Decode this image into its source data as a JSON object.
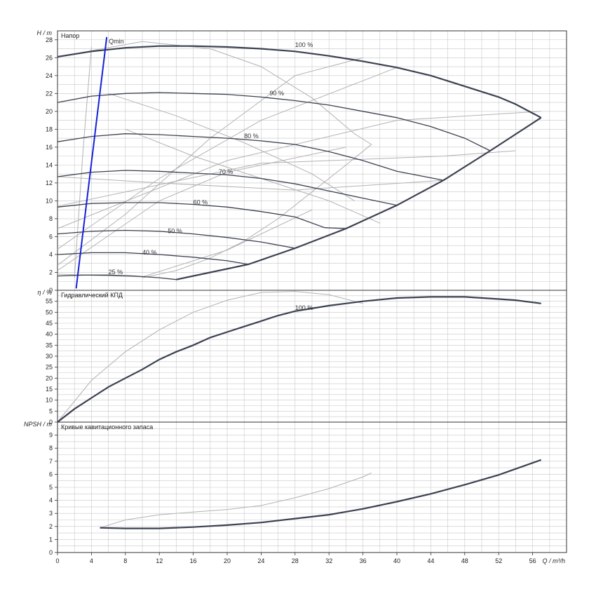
{
  "chart_data": [
    {
      "type": "line",
      "title": "Напор",
      "ylabel": "H / m",
      "xlim": [
        0,
        60
      ],
      "ylim": [
        0,
        29
      ],
      "yticks": [
        0,
        2,
        4,
        6,
        8,
        10,
        12,
        14,
        16,
        18,
        20,
        22,
        24,
        26,
        28
      ],
      "grid": true,
      "speed_curves": [
        {
          "name": "100 %",
          "label_at": [
            28,
            27.2
          ],
          "points": [
            [
              0,
              26.1
            ],
            [
              4,
              26.7
            ],
            [
              8,
              27.1
            ],
            [
              12,
              27.3
            ],
            [
              16,
              27.3
            ],
            [
              20,
              27.2
            ],
            [
              24,
              27.0
            ],
            [
              28,
              26.7
            ],
            [
              32,
              26.2
            ],
            [
              36,
              25.6
            ],
            [
              40,
              24.9
            ],
            [
              44,
              24.0
            ],
            [
              48,
              22.8
            ],
            [
              52,
              21.6
            ],
            [
              54,
              20.8
            ],
            [
              57,
              19.3
            ]
          ]
        },
        {
          "name": "90 %",
          "label_at": [
            25,
            21.8
          ],
          "points": [
            [
              0,
              21.0
            ],
            [
              4,
              21.7
            ],
            [
              8,
              22.0
            ],
            [
              12,
              22.1
            ],
            [
              16,
              22.0
            ],
            [
              20,
              21.9
            ],
            [
              24,
              21.6
            ],
            [
              28,
              21.2
            ],
            [
              32,
              20.7
            ],
            [
              36,
              20.0
            ],
            [
              40,
              19.3
            ],
            [
              44,
              18.3
            ],
            [
              48,
              17.0
            ],
            [
              51,
              15.6
            ]
          ]
        },
        {
          "name": "80 %",
          "label_at": [
            22,
            17.0
          ],
          "points": [
            [
              0,
              16.6
            ],
            [
              4,
              17.2
            ],
            [
              8,
              17.5
            ],
            [
              12,
              17.4
            ],
            [
              16,
              17.2
            ],
            [
              20,
              17.0
            ],
            [
              24,
              16.7
            ],
            [
              28,
              16.3
            ],
            [
              32,
              15.5
            ],
            [
              36,
              14.5
            ],
            [
              40,
              13.3
            ],
            [
              45.5,
              12.3
            ]
          ]
        },
        {
          "name": "70 %",
          "label_at": [
            19,
            13.0
          ],
          "points": [
            [
              0,
              12.7
            ],
            [
              4,
              13.2
            ],
            [
              8,
              13.4
            ],
            [
              12,
              13.3
            ],
            [
              16,
              13.1
            ],
            [
              20,
              12.9
            ],
            [
              24,
              12.5
            ],
            [
              28,
              11.9
            ],
            [
              32,
              11.1
            ],
            [
              36,
              10.3
            ],
            [
              40,
              9.5
            ]
          ]
        },
        {
          "name": "60 %",
          "label_at": [
            16,
            9.6
          ],
          "points": [
            [
              0,
              9.3
            ],
            [
              4,
              9.7
            ],
            [
              8,
              9.8
            ],
            [
              12,
              9.8
            ],
            [
              16,
              9.6
            ],
            [
              20,
              9.3
            ],
            [
              24,
              8.8
            ],
            [
              28,
              8.2
            ],
            [
              31.5,
              7.0
            ],
            [
              34,
              6.9
            ]
          ]
        },
        {
          "name": "50 %",
          "label_at": [
            13,
            6.4
          ],
          "points": [
            [
              0,
              6.3
            ],
            [
              4,
              6.6
            ],
            [
              8,
              6.7
            ],
            [
              12,
              6.6
            ],
            [
              16,
              6.3
            ],
            [
              20,
              5.9
            ],
            [
              24,
              5.4
            ],
            [
              28,
              4.7
            ]
          ]
        },
        {
          "name": "40 %",
          "label_at": [
            10,
            4.0
          ],
          "points": [
            [
              0,
              4.0
            ],
            [
              4,
              4.2
            ],
            [
              8,
              4.2
            ],
            [
              12,
              4.0
            ],
            [
              16,
              3.7
            ],
            [
              20,
              3.3
            ],
            [
              22.5,
              2.9
            ]
          ]
        },
        {
          "name": "25 %",
          "label_at": [
            6,
            1.8
          ],
          "points": [
            [
              0,
              1.6
            ],
            [
              3,
              1.7
            ],
            [
              6,
              1.7
            ],
            [
              9,
              1.6
            ],
            [
              12,
              1.4
            ],
            [
              14,
              1.2
            ]
          ]
        }
      ],
      "max_curve": [
        [
          14,
          1.2
        ],
        [
          18,
          2.0
        ],
        [
          22.5,
          2.9
        ],
        [
          28,
          4.7
        ],
        [
          34,
          6.9
        ],
        [
          40,
          9.5
        ],
        [
          45.5,
          12.3
        ],
        [
          51,
          15.6
        ],
        [
          57,
          19.3
        ]
      ],
      "qmin": {
        "label": "Qmin",
        "points": [
          [
            2.2,
            0.2
          ],
          [
            5.8,
            28.3
          ]
        ]
      },
      "iso_curves": [
        [
          [
            0,
            26.1
          ],
          [
            10,
            27.8
          ],
          [
            18,
            27.0
          ],
          [
            24,
            25.0
          ],
          [
            30,
            21.5
          ],
          [
            35,
            17.5
          ],
          [
            37,
            16.3
          ],
          [
            34,
            14.0
          ],
          [
            30,
            11.0
          ],
          [
            26,
            8.0
          ],
          [
            22,
            5.5
          ],
          [
            18,
            3.6
          ],
          [
            14,
            2.2
          ],
          [
            10,
            1.4
          ]
        ],
        [
          [
            2,
            1.4
          ],
          [
            3,
            15.5
          ],
          [
            4,
            27.2
          ]
        ],
        [
          [
            0,
            2.8
          ],
          [
            8,
            8.5
          ],
          [
            18,
            17.0
          ],
          [
            28,
            24.0
          ],
          [
            36,
            26.0
          ]
        ],
        [
          [
            0,
            4.6
          ],
          [
            12,
            12.5
          ],
          [
            24,
            19.0
          ],
          [
            40,
            24.9
          ]
        ],
        [
          [
            0,
            6.9
          ],
          [
            20,
            14.5
          ],
          [
            40,
            19.0
          ],
          [
            57,
            20.0
          ]
        ],
        [
          [
            0,
            9.4
          ],
          [
            24,
            14.2
          ],
          [
            45.5,
            15.0
          ],
          [
            54,
            15.6
          ]
        ],
        [
          [
            0,
            12.7
          ],
          [
            12,
            12.0
          ],
          [
            28,
            11.2
          ],
          [
            45.5,
            12.3
          ]
        ],
        [
          [
            0,
            2.2
          ],
          [
            12,
            10.0
          ],
          [
            20,
            13.2
          ],
          [
            34,
            16.0
          ]
        ],
        [
          [
            0,
            1.8
          ],
          [
            10,
            1.5
          ],
          [
            20,
            4.5
          ],
          [
            30,
            9.0
          ]
        ],
        [
          [
            8,
            18.0
          ],
          [
            16,
            15.0
          ],
          [
            24,
            12.5
          ],
          [
            32,
            10.0
          ],
          [
            38,
            7.5
          ]
        ],
        [
          [
            6,
            22.0
          ],
          [
            14,
            19.5
          ],
          [
            22,
            16.5
          ],
          [
            30,
            13.0
          ],
          [
            35,
            10.0
          ]
        ]
      ]
    },
    {
      "type": "line",
      "title": "Гидравлический КПД",
      "ylabel": "η / %",
      "xlim": [
        0,
        60
      ],
      "ylim": [
        0,
        60
      ],
      "yticks": [
        0,
        5,
        10,
        15,
        20,
        25,
        30,
        35,
        40,
        45,
        50,
        55
      ],
      "grid": true,
      "series": [
        {
          "name": "100 %",
          "label_at": [
            28,
            51
          ],
          "points": [
            [
              0,
              0
            ],
            [
              2,
              6
            ],
            [
              4,
              11
            ],
            [
              6,
              16
            ],
            [
              8,
              20
            ],
            [
              10,
              24
            ],
            [
              12,
              28.5
            ],
            [
              14,
              32
            ],
            [
              16,
              35
            ],
            [
              18,
              38.5
            ],
            [
              20,
              41
            ],
            [
              22,
              43.5
            ],
            [
              24,
              46
            ],
            [
              26,
              48.5
            ],
            [
              28,
              50.5
            ],
            [
              32,
              53
            ],
            [
              36,
              55
            ],
            [
              40,
              56.5
            ],
            [
              44,
              57
            ],
            [
              48,
              57
            ],
            [
              52,
              56
            ],
            [
              54,
              55.5
            ],
            [
              57,
              54
            ]
          ]
        }
      ],
      "iso_curve": [
        [
          0,
          0
        ],
        [
          4,
          19
        ],
        [
          8,
          32
        ],
        [
          12,
          42
        ],
        [
          16,
          50
        ],
        [
          20,
          55.5
        ],
        [
          24,
          59
        ],
        [
          28,
          59.5
        ],
        [
          32,
          58
        ],
        [
          36,
          54
        ]
      ]
    },
    {
      "type": "line",
      "title": "Кривые кавитационного запаса",
      "ylabel": "NPSH / m",
      "xlabel": "Q / m³/h",
      "xlim": [
        0,
        60
      ],
      "ylim": [
        0,
        10
      ],
      "yticks": [
        0,
        1,
        2,
        3,
        4,
        5,
        6,
        7,
        8,
        9
      ],
      "xticks": [
        0,
        4,
        8,
        12,
        16,
        20,
        24,
        28,
        32,
        36,
        40,
        44,
        48,
        52,
        56
      ],
      "grid": true,
      "series": [
        {
          "name": "",
          "points": [
            [
              5,
              1.9
            ],
            [
              8,
              1.85
            ],
            [
              12,
              1.85
            ],
            [
              16,
              1.95
            ],
            [
              20,
              2.1
            ],
            [
              24,
              2.3
            ],
            [
              28,
              2.6
            ],
            [
              32,
              2.9
            ],
            [
              36,
              3.35
            ],
            [
              40,
              3.9
            ],
            [
              44,
              4.5
            ],
            [
              48,
              5.2
            ],
            [
              52,
              5.95
            ],
            [
              57,
              7.1
            ]
          ]
        }
      ],
      "iso_curve": [
        [
          5,
          1.9
        ],
        [
          8,
          2.5
        ],
        [
          12,
          2.9
        ],
        [
          16,
          3.1
        ],
        [
          20,
          3.3
        ],
        [
          24,
          3.6
        ],
        [
          28,
          4.2
        ],
        [
          32,
          4.9
        ],
        [
          36,
          5.8
        ],
        [
          37,
          6.1
        ]
      ]
    }
  ],
  "colors": {
    "main": "#3a4150",
    "iso": "#b2b2b2",
    "qmin": "#1420d8",
    "grid": "#c8c8c8"
  }
}
